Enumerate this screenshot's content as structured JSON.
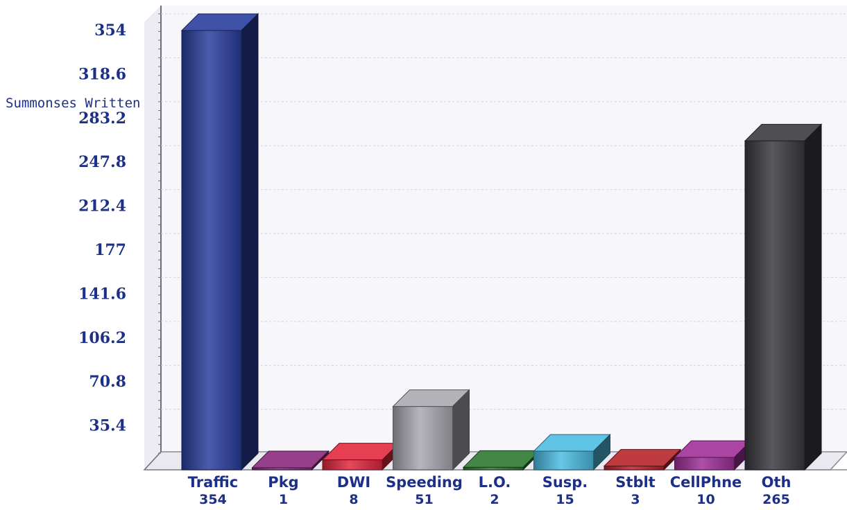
{
  "chart_data": {
    "type": "bar",
    "title": "",
    "xlabel": "",
    "ylabel": "Summonses Written",
    "categories": [
      "Traffic",
      "Pkg",
      "DWI",
      "Speeding",
      "L.O.",
      "Susp.",
      "Stblt",
      "CellPhne",
      "Oth"
    ],
    "values": [
      354,
      1,
      8,
      51,
      2,
      15,
      3,
      10,
      265
    ],
    "value_labels": [
      "354",
      "1",
      "8",
      "51",
      "2",
      "15",
      "3",
      "10",
      "265"
    ],
    "ylim": [
      0,
      354
    ],
    "yticks": [
      "35.4",
      "70.8",
      "106.2",
      "141.6",
      "177",
      "212.4",
      "247.8",
      "283.2",
      "318.6",
      "354"
    ],
    "grid": true,
    "legend": "none",
    "bar_colors": [
      "#2b3f9e",
      "#8a2a7e",
      "#e3283f",
      "#a9a9b1",
      "#2e7a32",
      "#4dbde3",
      "#b7262c",
      "#a0309a",
      "#3b3b40"
    ]
  }
}
